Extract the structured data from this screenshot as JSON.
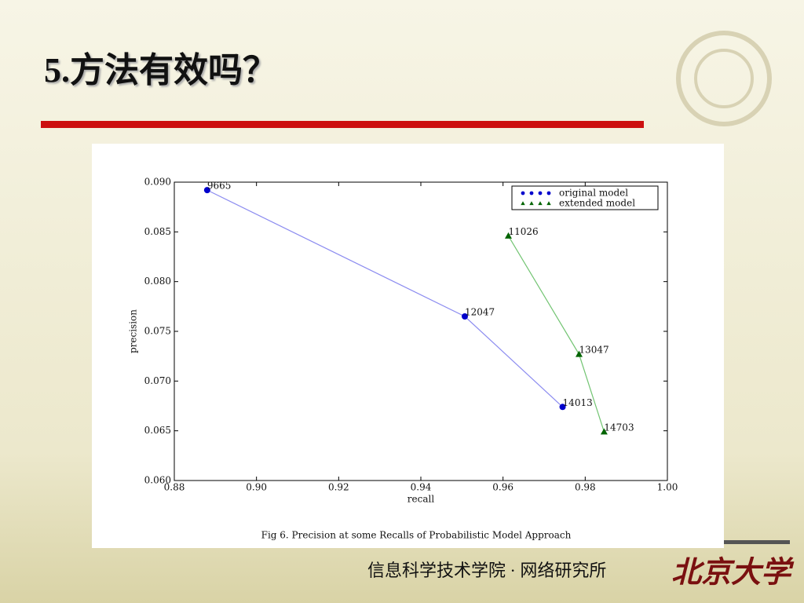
{
  "slide_title": "5.方法有效吗？",
  "footer": "信息科学技术学院 · 网络研究所",
  "logo_text": "北京大学",
  "chart_data": {
    "type": "line",
    "caption": "Fig 6. Precision at some Recalls of Probabilistic Model Approach",
    "x_label": "recall",
    "y_label": "precision",
    "xlim": [
      0.88,
      1.0
    ],
    "xticks": [
      0.88,
      {
        "value": 0.9,
        "label": "0.90"
      },
      0.92,
      0.94,
      0.96,
      0.98,
      {
        "value": 1.0,
        "label": "1.00"
      }
    ],
    "ylim": [
      0.06,
      0.09
    ],
    "yticks": [
      {
        "value": 0.06,
        "label": "0.060"
      },
      0.065,
      {
        "value": 0.07,
        "label": "0.070"
      },
      0.075,
      {
        "value": 0.08,
        "label": "0.080"
      },
      0.085,
      {
        "value": 0.09,
        "label": "0.090"
      }
    ],
    "legend": "upper right",
    "series": [
      {
        "name": "original model",
        "color": "#0000cc",
        "line_color": "#8c8cf0",
        "marker": "circle",
        "x": [
          0.888,
          0.9507,
          0.9745
        ],
        "values": [
          0.0892,
          0.0765,
          0.0674
        ],
        "labels": [
          "9665",
          "12047",
          "14013"
        ]
      },
      {
        "name": "extended model",
        "color": "#006400",
        "line_color": "#72c472",
        "marker": "triangle",
        "x": [
          0.9613,
          0.9785,
          0.9846
        ],
        "values": [
          0.0846,
          0.0727,
          0.0649
        ],
        "labels": [
          "11026",
          "13047",
          "14703"
        ]
      }
    ]
  }
}
